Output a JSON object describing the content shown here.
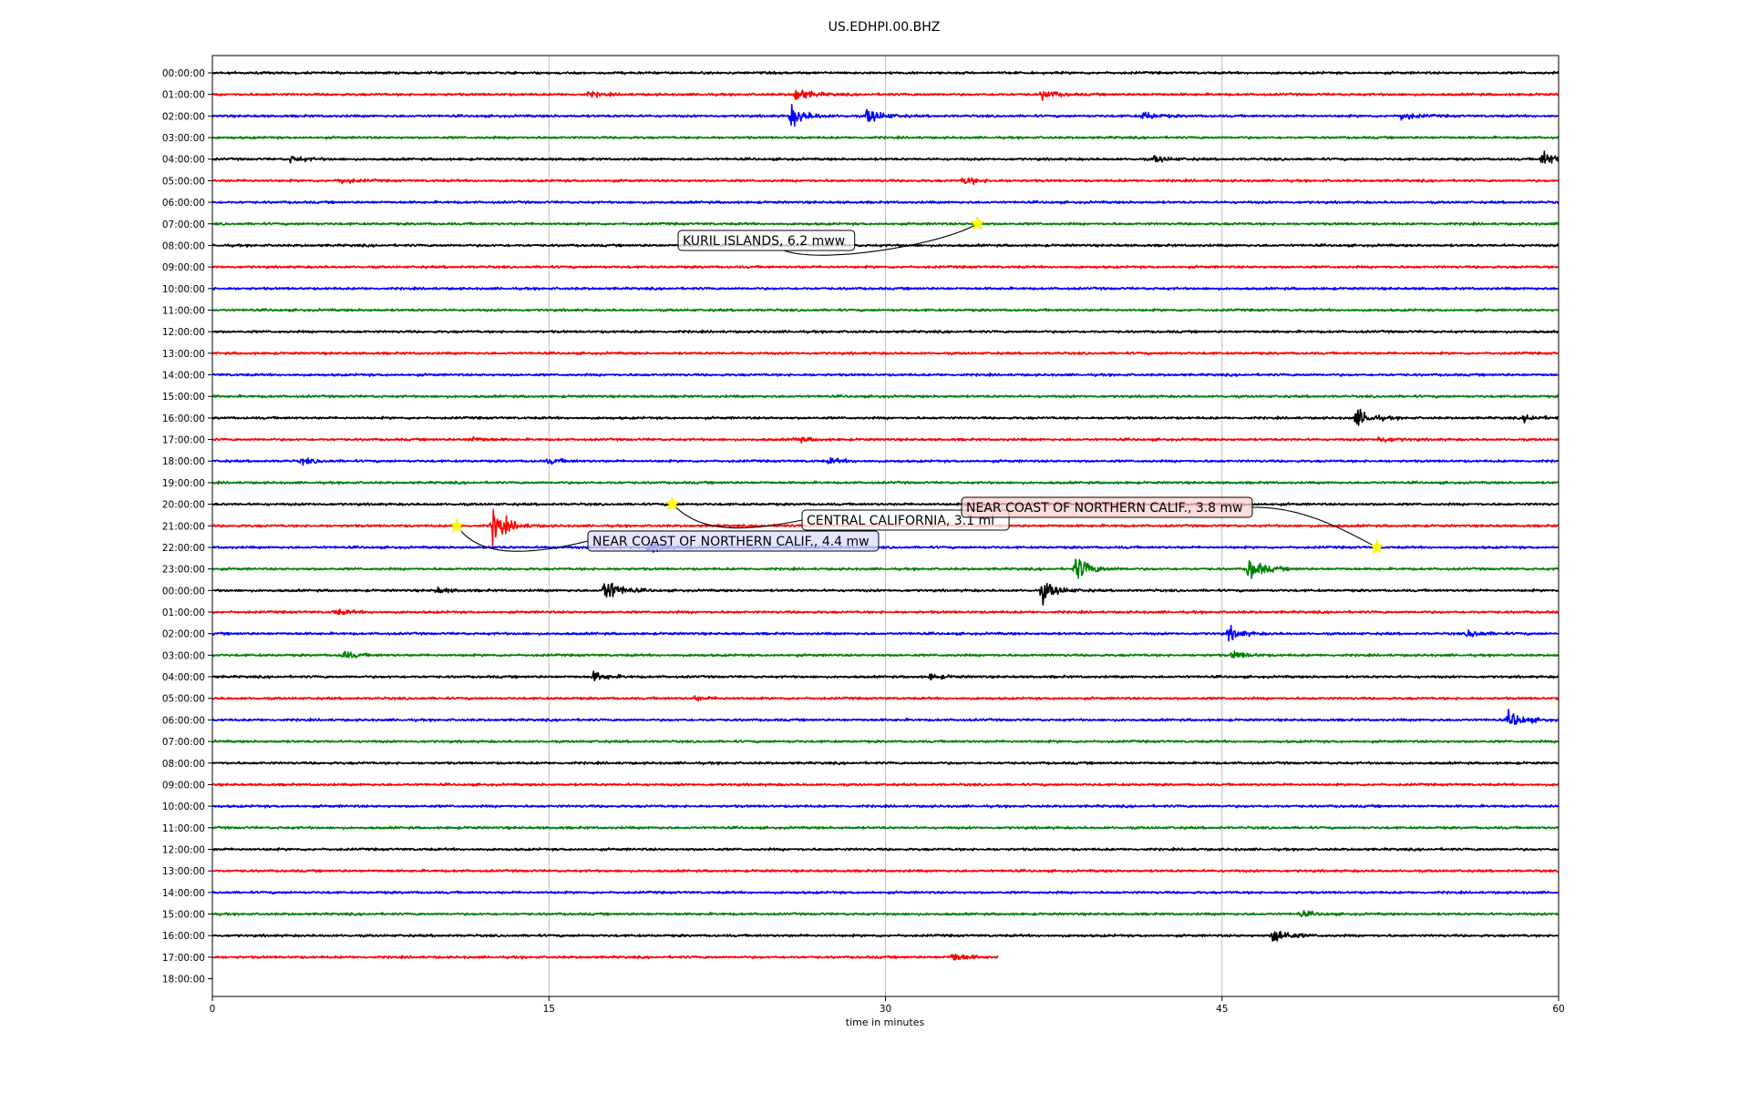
{
  "chart_data": {
    "type": "line",
    "title": "US.EDHPI.00.BHZ",
    "xlabel": "time in minutes",
    "xlim": [
      0,
      60
    ],
    "xticks": [
      "0",
      "15",
      "30",
      "45",
      "60"
    ],
    "row_labels": [
      "00:00:00",
      "01:00:00",
      "02:00:00",
      "03:00:00",
      "04:00:00",
      "05:00:00",
      "06:00:00",
      "07:00:00",
      "08:00:00",
      "09:00:00",
      "10:00:00",
      "11:00:00",
      "12:00:00",
      "13:00:00",
      "14:00:00",
      "15:00:00",
      "16:00:00",
      "17:00:00",
      "18:00:00",
      "19:00:00",
      "20:00:00",
      "21:00:00",
      "22:00:00",
      "23:00:00",
      "00:00:00",
      "01:00:00",
      "02:00:00",
      "03:00:00",
      "04:00:00",
      "05:00:00",
      "06:00:00",
      "07:00:00",
      "08:00:00",
      "09:00:00",
      "10:00:00",
      "11:00:00",
      "12:00:00",
      "13:00:00",
      "14:00:00",
      "15:00:00",
      "16:00:00",
      "17:00:00",
      "18:00:00"
    ],
    "trace_count": 42,
    "last_trace_end_min": 35,
    "colors": [
      "#000000",
      "#ff0000",
      "#0000ff",
      "#008000"
    ],
    "grid": "vertical",
    "bursts": [
      {
        "row": 1,
        "t": 26.0,
        "amp": 0.55
      },
      {
        "row": 1,
        "t": 37.0,
        "amp": 0.35
      },
      {
        "row": 1,
        "t": 16.8,
        "amp": 0.18
      },
      {
        "row": 2,
        "t": 25.8,
        "amp": 0.8
      },
      {
        "row": 2,
        "t": 29.2,
        "amp": 0.6
      },
      {
        "row": 2,
        "t": 41.5,
        "amp": 0.3
      },
      {
        "row": 2,
        "t": 53.0,
        "amp": 0.3
      },
      {
        "row": 4,
        "t": 3.5,
        "amp": 0.25
      },
      {
        "row": 4,
        "t": 42.0,
        "amp": 0.25
      },
      {
        "row": 4,
        "t": 59.3,
        "amp": 0.6
      },
      {
        "row": 5,
        "t": 33.5,
        "amp": 0.3
      },
      {
        "row": 5,
        "t": 5.7,
        "amp": 0.2
      },
      {
        "row": 16,
        "t": 51.0,
        "amp": 0.7
      },
      {
        "row": 16,
        "t": 58.5,
        "amp": 0.25
      },
      {
        "row": 17,
        "t": 11.5,
        "amp": 0.2
      },
      {
        "row": 17,
        "t": 52.0,
        "amp": 0.25
      },
      {
        "row": 17,
        "t": 26.0,
        "amp": 0.2
      },
      {
        "row": 18,
        "t": 4.0,
        "amp": 0.2
      },
      {
        "row": 18,
        "t": 15.0,
        "amp": 0.2
      },
      {
        "row": 18,
        "t": 27.5,
        "amp": 0.2
      },
      {
        "row": 21,
        "t": 12.5,
        "amp": 1.3
      },
      {
        "row": 22,
        "t": 19.5,
        "amp": 0.4
      },
      {
        "row": 23,
        "t": 38.5,
        "amp": 1.0
      },
      {
        "row": 23,
        "t": 46.2,
        "amp": 0.9
      },
      {
        "row": 24,
        "t": 17.5,
        "amp": 1.0
      },
      {
        "row": 24,
        "t": 37.0,
        "amp": 0.8
      },
      {
        "row": 24,
        "t": 10.0,
        "amp": 0.2
      },
      {
        "row": 25,
        "t": 5.5,
        "amp": 0.2
      },
      {
        "row": 26,
        "t": 45.3,
        "amp": 0.5
      },
      {
        "row": 26,
        "t": 56.0,
        "amp": 0.3
      },
      {
        "row": 27,
        "t": 5.8,
        "amp": 0.3
      },
      {
        "row": 27,
        "t": 45.5,
        "amp": 0.3
      },
      {
        "row": 28,
        "t": 17.0,
        "amp": 0.35
      },
      {
        "row": 28,
        "t": 32.0,
        "amp": 0.2
      },
      {
        "row": 29,
        "t": 21.5,
        "amp": 0.15
      },
      {
        "row": 30,
        "t": 57.8,
        "amp": 0.7
      },
      {
        "row": 39,
        "t": 48.5,
        "amp": 0.2
      },
      {
        "row": 40,
        "t": 47.3,
        "amp": 0.7
      },
      {
        "row": 41,
        "t": 33.0,
        "amp": 0.35
      }
    ],
    "events": [
      {
        "label": "KURIL ISLANDS, 6.2 mww",
        "row": 7,
        "t": 34.1,
        "box_color": "#ffffff"
      },
      {
        "label": "CENTRAL CALIFORNIA, 3.1 ml",
        "row": 20,
        "t": 20.5,
        "box_color": "#ffffff"
      },
      {
        "label": "NEAR COAST OF NORTHERN CALIF., 3.8 mw",
        "row": 22,
        "t": 51.9,
        "box_color": "#ffd0d0"
      },
      {
        "label": "NEAR COAST OF NORTHERN CALIF., 4.4 mw",
        "row": 21,
        "t": 10.9,
        "box_color": "#dcdcff"
      }
    ]
  }
}
